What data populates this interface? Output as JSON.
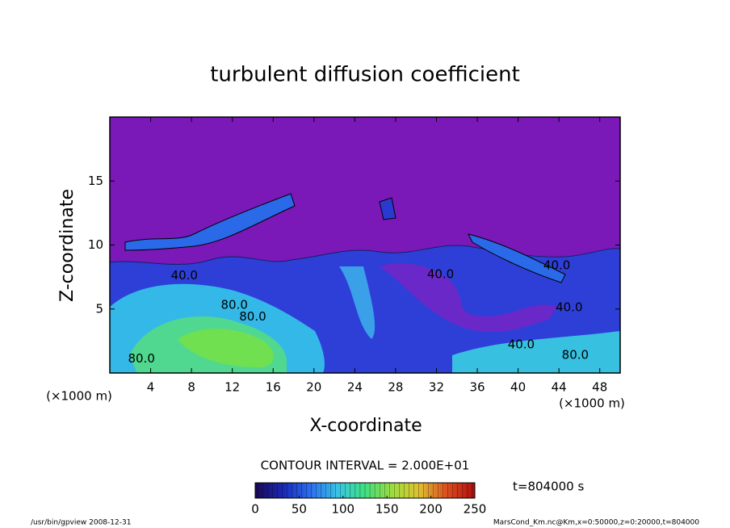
{
  "chart_data": {
    "type": "contour",
    "title": "turbulent diffusion coefficient",
    "xlabel": "X-coordinate",
    "ylabel": "Z-coordinate",
    "xunit": "(×1000 m)",
    "yunit": "(×1000 m)",
    "xlim": [
      0,
      50
    ],
    "ylim": [
      0,
      20
    ],
    "xticks": [
      4,
      8,
      12,
      16,
      20,
      24,
      28,
      32,
      36,
      40,
      44,
      48
    ],
    "yticks": [
      5,
      10,
      15
    ],
    "contour_interval": "CONTOUR INTERVAL = 2.000E+01",
    "time_label": "t=804000 s",
    "footer_left": "/usr/bin/gpview  2008-12-31",
    "footer_right": "MarsCond_Km.nc@Km,x=0:50000,z=0:20000,t=804000",
    "colorbar": {
      "lim": [
        0,
        250
      ],
      "ticks": [
        0,
        50,
        100,
        150,
        200,
        250
      ],
      "colors": [
        "#1a0a5a",
        "#1a2ab8",
        "#2c6ff0",
        "#38c8e8",
        "#40e080",
        "#a0e040",
        "#e0c030",
        "#e05020",
        "#b01010"
      ]
    },
    "contour_labels": [
      {
        "value": 40,
        "label": "40.0",
        "x": 7.3,
        "y": 7.6
      },
      {
        "value": 80,
        "label": "80.0",
        "x": 12.2,
        "y": 5.3
      },
      {
        "value": 80,
        "label": "80.0",
        "x": 14.0,
        "y": 4.4
      },
      {
        "value": 80,
        "label": "80.0",
        "x": 3.1,
        "y": 1.1
      },
      {
        "value": 40,
        "label": "40.0",
        "x": 32.4,
        "y": 7.7
      },
      {
        "value": 40,
        "label": "40.0",
        "x": 43.8,
        "y": 8.4
      },
      {
        "value": 40,
        "label": "40.0",
        "x": 45.0,
        "y": 5.1
      },
      {
        "value": 40,
        "label": "40.0",
        "x": 40.3,
        "y": 2.2
      },
      {
        "value": 80,
        "label": "80.0",
        "x": 45.6,
        "y": 1.4
      }
    ]
  }
}
